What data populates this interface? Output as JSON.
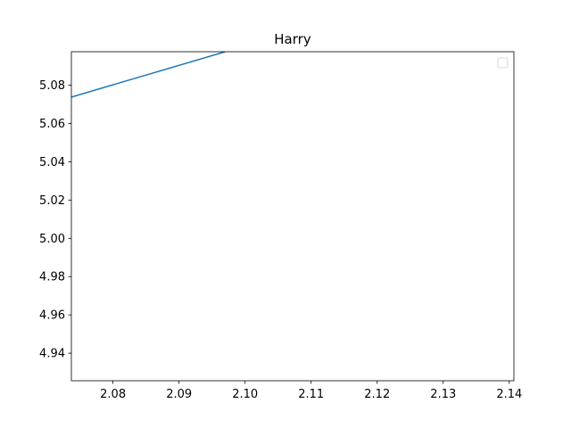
{
  "chart_data": {
    "type": "line",
    "title": "Harry",
    "xlabel": "",
    "ylabel": "",
    "xlim": [
      2.0737,
      2.1407
    ],
    "ylim": [
      4.9256,
      5.0975
    ],
    "x_ticks": [
      "2.08",
      "2.09",
      "2.10",
      "2.11",
      "2.12",
      "2.13",
      "2.14"
    ],
    "x_tick_values": [
      2.08,
      2.09,
      2.1,
      2.11,
      2.12,
      2.13,
      2.14
    ],
    "y_ticks": [
      "4.94",
      "4.96",
      "4.98",
      "5.00",
      "5.02",
      "5.04",
      "5.06",
      "5.08"
    ],
    "y_tick_values": [
      4.94,
      4.96,
      4.98,
      5.0,
      5.02,
      5.04,
      5.06,
      5.08
    ],
    "series": [
      {
        "x": [
          2.0737,
          2.097
        ],
        "y": [
          5.0738,
          5.0975
        ],
        "color": "#1f77b4"
      }
    ],
    "grid": false,
    "legend": "top-right",
    "legend_entries": []
  }
}
